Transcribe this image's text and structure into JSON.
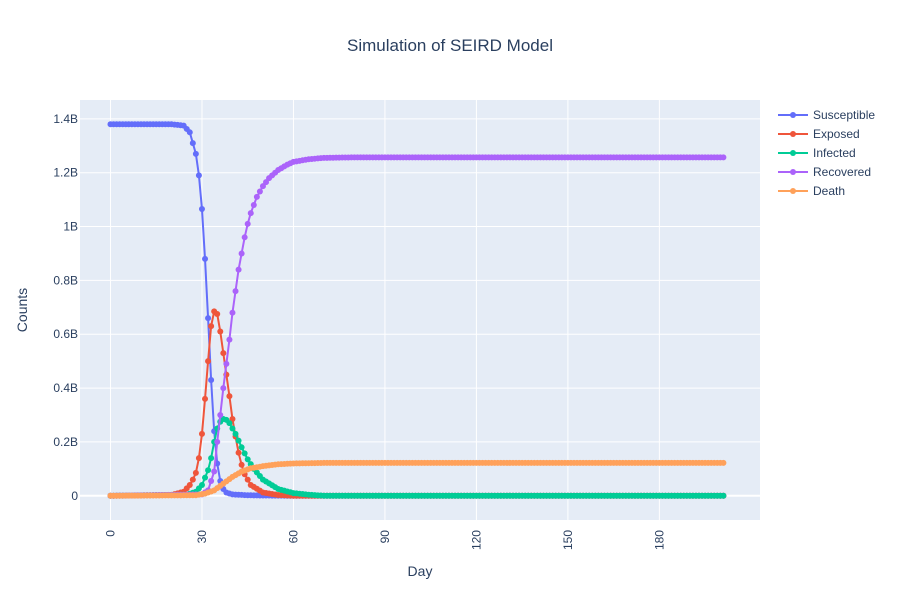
{
  "chart_data": {
    "type": "line",
    "title": "Simulation of SEIRD Model",
    "xlabel": "Day",
    "ylabel": "Counts",
    "xlim": [
      -10,
      213
    ],
    "ylim": [
      -0.09,
      1.47
    ],
    "y_unit_note": "billions",
    "x_ticks": [
      0,
      30,
      60,
      90,
      120,
      150,
      180
    ],
    "x_tick_labels": [
      "0",
      "30",
      "60",
      "90",
      "120",
      "150",
      "180"
    ],
    "y_ticks": [
      0,
      0.2,
      0.4,
      0.6,
      0.8,
      1.0,
      1.2,
      1.4
    ],
    "y_tick_labels": [
      "0",
      "0.2B",
      "0.4B",
      "0.6B",
      "0.8B",
      "1B",
      "1.2B",
      "1.4B"
    ],
    "grid": true,
    "legend_position": "top-right",
    "mode": "lines+markers",
    "series": [
      {
        "name": "Susceptible",
        "color": "#636efa",
        "points": [
          [
            0,
            1.38
          ],
          [
            10,
            1.38
          ],
          [
            20,
            1.38
          ],
          [
            24,
            1.375
          ],
          [
            26,
            1.35
          ],
          [
            28,
            1.27
          ],
          [
            29,
            1.19
          ],
          [
            30,
            1.065
          ],
          [
            31,
            0.88
          ],
          [
            32,
            0.66
          ],
          [
            33,
            0.43
          ],
          [
            34,
            0.24
          ],
          [
            35,
            0.12
          ],
          [
            36,
            0.055
          ],
          [
            37,
            0.025
          ],
          [
            38,
            0.012
          ],
          [
            40,
            0.005
          ],
          [
            45,
            0.002
          ],
          [
            50,
            0.001
          ],
          [
            60,
            0.0
          ],
          [
            201,
            0.0
          ]
        ]
      },
      {
        "name": "Exposed",
        "color": "#ef553b",
        "points": [
          [
            0,
            0.0
          ],
          [
            20,
            0.003
          ],
          [
            24,
            0.015
          ],
          [
            26,
            0.04
          ],
          [
            27,
            0.06
          ],
          [
            28,
            0.085
          ],
          [
            29,
            0.14
          ],
          [
            30,
            0.23
          ],
          [
            31,
            0.36
          ],
          [
            32,
            0.5
          ],
          [
            33,
            0.63
          ],
          [
            34,
            0.685
          ],
          [
            35,
            0.675
          ],
          [
            36,
            0.61
          ],
          [
            37,
            0.53
          ],
          [
            38,
            0.45
          ],
          [
            39,
            0.37
          ],
          [
            40,
            0.285
          ],
          [
            41,
            0.22
          ],
          [
            42,
            0.16
          ],
          [
            43,
            0.115
          ],
          [
            44,
            0.08
          ],
          [
            46,
            0.04
          ],
          [
            50,
            0.012
          ],
          [
            55,
            0.003
          ],
          [
            60,
            0.0
          ],
          [
            201,
            0.0
          ]
        ]
      },
      {
        "name": "Infected",
        "color": "#00cc96",
        "points": [
          [
            0,
            0.0
          ],
          [
            25,
            0.004
          ],
          [
            28,
            0.015
          ],
          [
            30,
            0.04
          ],
          [
            32,
            0.095
          ],
          [
            33,
            0.14
          ],
          [
            34,
            0.2
          ],
          [
            35,
            0.25
          ],
          [
            36,
            0.275
          ],
          [
            37,
            0.285
          ],
          [
            38,
            0.282
          ],
          [
            39,
            0.27
          ],
          [
            40,
            0.25
          ],
          [
            41,
            0.23
          ],
          [
            42,
            0.205
          ],
          [
            43,
            0.18
          ],
          [
            45,
            0.135
          ],
          [
            47,
            0.1
          ],
          [
            50,
            0.06
          ],
          [
            55,
            0.025
          ],
          [
            60,
            0.01
          ],
          [
            65,
            0.004
          ],
          [
            70,
            0.0
          ],
          [
            201,
            0.0
          ]
        ]
      },
      {
        "name": "Recovered",
        "color": "#ab63fa",
        "points": [
          [
            0,
            0.0
          ],
          [
            30,
            0.005
          ],
          [
            32,
            0.02
          ],
          [
            34,
            0.09
          ],
          [
            35,
            0.2
          ],
          [
            36,
            0.3
          ],
          [
            37,
            0.4
          ],
          [
            38,
            0.49
          ],
          [
            39,
            0.58
          ],
          [
            40,
            0.68
          ],
          [
            41,
            0.76
          ],
          [
            42,
            0.84
          ],
          [
            43,
            0.9
          ],
          [
            44,
            0.96
          ],
          [
            45,
            1.01
          ],
          [
            46,
            1.05
          ],
          [
            47,
            1.08
          ],
          [
            48,
            1.11
          ],
          [
            49,
            1.13
          ],
          [
            50,
            1.15
          ],
          [
            52,
            1.18
          ],
          [
            55,
            1.21
          ],
          [
            58,
            1.23
          ],
          [
            60,
            1.24
          ],
          [
            65,
            1.25
          ],
          [
            70,
            1.255
          ],
          [
            80,
            1.257
          ],
          [
            201,
            1.257
          ]
        ]
      },
      {
        "name": "Death",
        "color": "#ffa15a",
        "points": [
          [
            0,
            0.0
          ],
          [
            28,
            0.002
          ],
          [
            31,
            0.008
          ],
          [
            34,
            0.02
          ],
          [
            37,
            0.045
          ],
          [
            40,
            0.07
          ],
          [
            43,
            0.09
          ],
          [
            46,
            0.102
          ],
          [
            50,
            0.11
          ],
          [
            55,
            0.117
          ],
          [
            60,
            0.12
          ],
          [
            70,
            0.122
          ],
          [
            201,
            0.122
          ]
        ]
      }
    ]
  }
}
